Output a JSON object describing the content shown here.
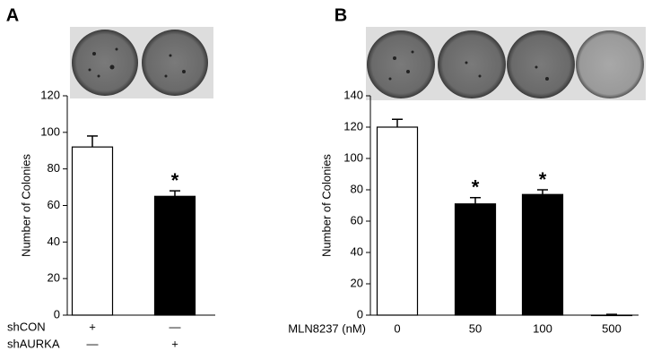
{
  "chart_data": [
    {
      "type": "bar",
      "panel_label": "A",
      "y_label": "Number of Colonies",
      "ylim": [
        0,
        120
      ],
      "yticks": [
        0,
        20,
        40,
        60,
        80,
        100,
        120
      ],
      "values": [
        92,
        65
      ],
      "errors": [
        6,
        3
      ],
      "colors": [
        "#ffffff",
        "#000000"
      ],
      "markers": [
        null,
        "*"
      ],
      "x_rows": [
        {
          "label": "shCON",
          "cells": [
            "+",
            "—"
          ]
        },
        {
          "label": "shAURKA",
          "cells": [
            "—",
            "+"
          ]
        }
      ]
    },
    {
      "type": "bar",
      "panel_label": "B",
      "y_label": "Number of Colonies",
      "x_label": "MLN8237 (nM)",
      "ylim": [
        0,
        140
      ],
      "yticks": [
        0,
        20,
        40,
        60,
        80,
        100,
        120,
        140
      ],
      "categories": [
        "0",
        "50",
        "100",
        "500"
      ],
      "values": [
        120,
        71,
        77,
        0
      ],
      "errors": [
        5,
        4,
        3,
        0.5
      ],
      "colors": [
        "#ffffff",
        "#000000",
        "#000000",
        "#000000"
      ],
      "markers": [
        null,
        "*",
        "*",
        null
      ]
    }
  ]
}
